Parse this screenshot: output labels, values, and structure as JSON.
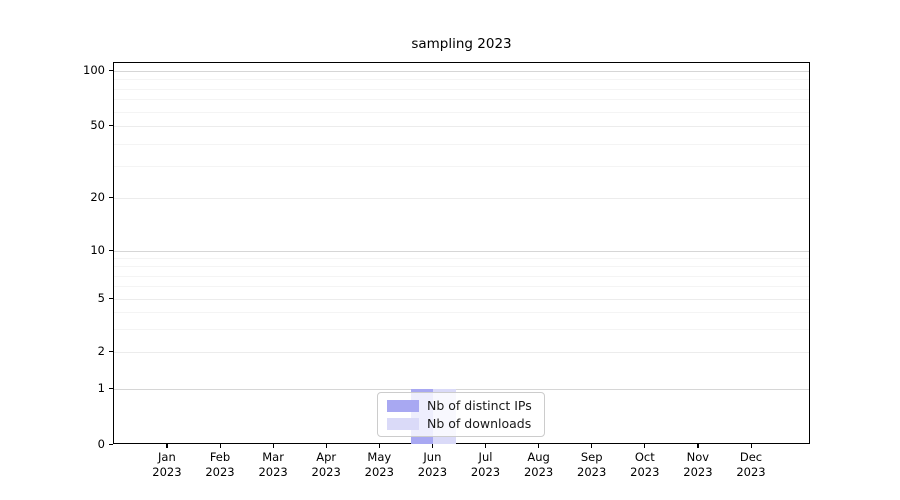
{
  "chart_data": {
    "type": "bar",
    "title": "sampling 2023",
    "categories": [
      "Jan 2023",
      "Feb 2023",
      "Mar 2023",
      "Apr 2023",
      "May 2023",
      "Jun 2023",
      "Jul 2023",
      "Aug 2023",
      "Sep 2023",
      "Oct 2023",
      "Nov 2023",
      "Dec 2023"
    ],
    "series": [
      {
        "name": "Nb of distinct IPs",
        "color": "#a8a8f2",
        "values": [
          0,
          0,
          0,
          0,
          0,
          1,
          0,
          0,
          0,
          0,
          0,
          0
        ]
      },
      {
        "name": "Nb of downloads",
        "color": "#dadaf8",
        "values": [
          0,
          0,
          0,
          0,
          0,
          1,
          0,
          0,
          0,
          0,
          0,
          0
        ]
      }
    ],
    "yscale": "symlog",
    "ylim": [
      0,
      100
    ],
    "yticks_labeled": [
      0,
      1,
      2,
      5,
      10,
      20,
      50,
      100
    ],
    "yticks_major": [
      1,
      10,
      100
    ],
    "yticks_minor": [
      3,
      4,
      6,
      7,
      8,
      9,
      30,
      40,
      60,
      70,
      80,
      90
    ],
    "grid": true,
    "legend_position": "lower center",
    "text_color": "#000000",
    "gridline_major_color": "#d6d6d6",
    "gridline_minor_color": "#f4f4f4"
  }
}
